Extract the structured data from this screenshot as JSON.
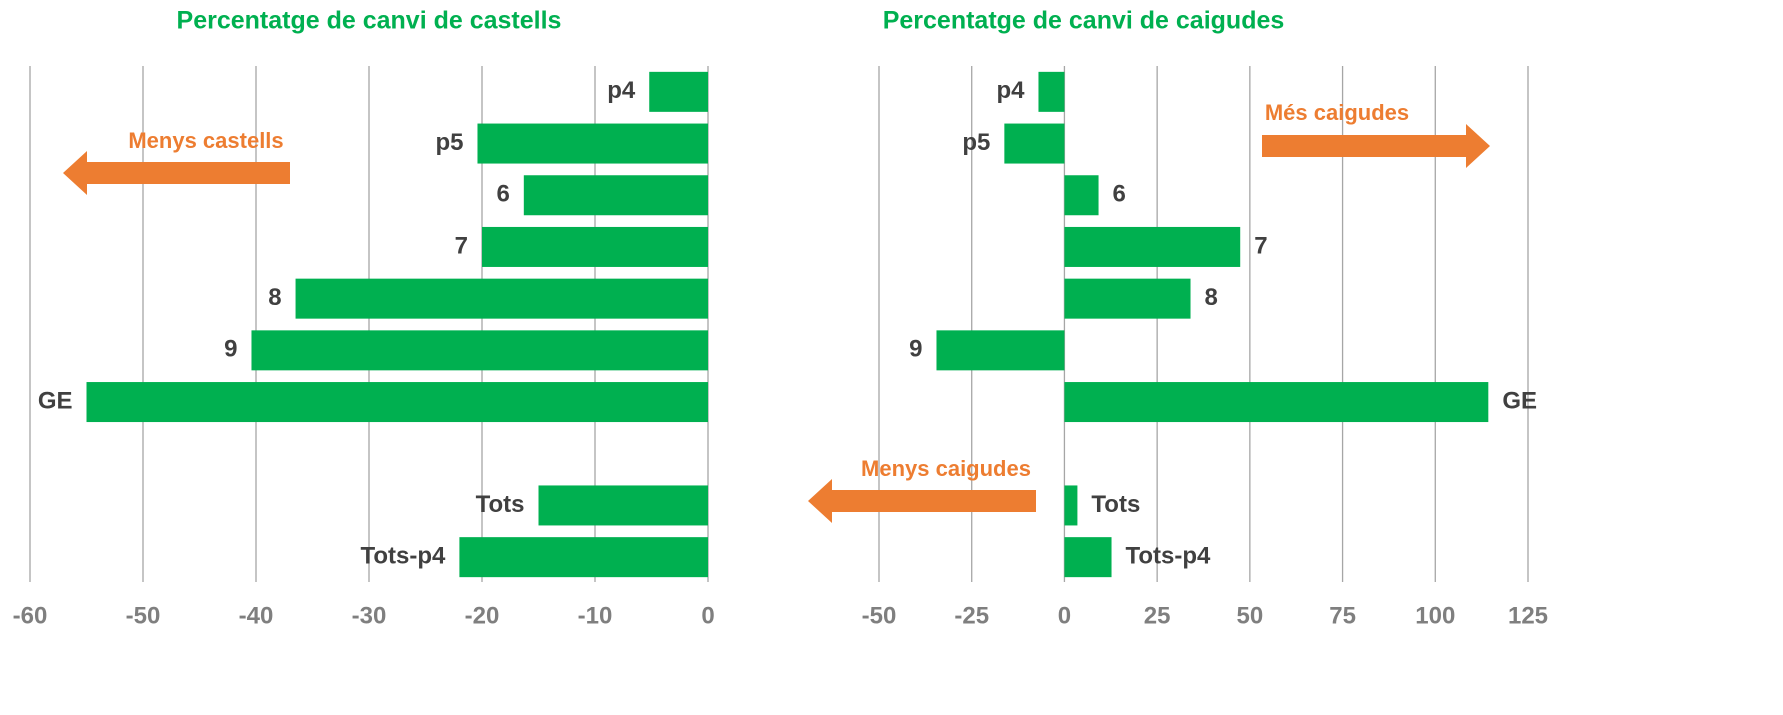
{
  "chart_data": [
    {
      "type": "bar",
      "orientation": "horizontal",
      "title": "Percentatge de canvi de castells",
      "categories": [
        "p4",
        "p5",
        "6",
        "7",
        "8",
        "9",
        "GE",
        null,
        "Tots",
        "Tots-p4"
      ],
      "values": [
        -5.2,
        -20.4,
        -16.3,
        -20.0,
        -36.5,
        -40.4,
        -55.0,
        null,
        -15.0,
        -22.0
      ],
      "color": "#00b050",
      "xlim": [
        -60,
        0
      ],
      "xticks": [
        -60,
        -50,
        -40,
        -30,
        -20,
        -10,
        0
      ],
      "grid": true,
      "annotations": [
        "Menys castells"
      ]
    },
    {
      "type": "bar",
      "orientation": "horizontal",
      "title": "Percentatge de canvi de caigudes",
      "categories": [
        "p4",
        "p5",
        "6",
        "7",
        "8",
        "9",
        "GE",
        null,
        "Tots",
        "Tots-p4"
      ],
      "values": [
        -7.0,
        -16.2,
        9.2,
        47.4,
        34.0,
        -34.5,
        114.3,
        null,
        3.5,
        12.7
      ],
      "color": "#00b050",
      "xlim": [
        -50,
        125
      ],
      "xticks": [
        -50,
        -25,
        0,
        25,
        50,
        75,
        100,
        125
      ],
      "grid": true,
      "annotations": [
        "Més caigudes",
        "Menys caigudes"
      ]
    }
  ]
}
